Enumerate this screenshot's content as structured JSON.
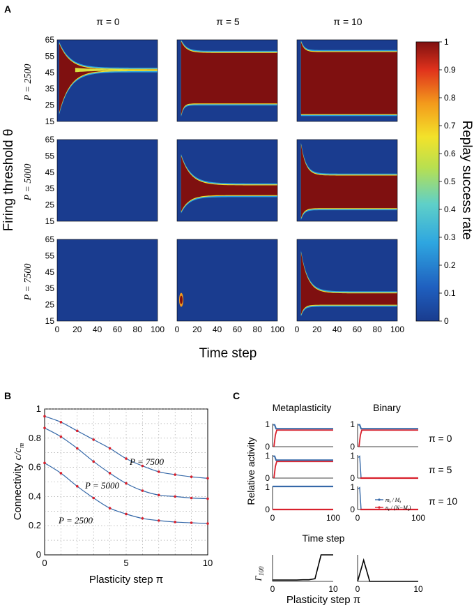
{
  "panels": {
    "a": "A",
    "b": "B",
    "c": "C"
  },
  "panel_a": {
    "col_titles": [
      "π = 0",
      "π = 5",
      "π = 10"
    ],
    "row_titles": [
      "P = 2500",
      "P = 5000",
      "P = 7500"
    ],
    "ylabel": "Firing threshold θ",
    "xlabel": "Time step",
    "yticks": [
      "65",
      "55",
      "45",
      "35",
      "25",
      "15"
    ],
    "xticks": [
      "0",
      "20",
      "40",
      "60",
      "80",
      "100"
    ],
    "colorbar": {
      "label": "Replay success rate",
      "ticks": [
        "1",
        "0.9",
        "0.8",
        "0.7",
        "0.6",
        "0.5",
        "0.4",
        "0.3",
        "0.2",
        "0.1",
        "0"
      ]
    },
    "colors": {
      "high": "#7f1010",
      "low": "#1a3c8f"
    }
  },
  "chart_data": [
    {
      "type": "line",
      "title": "",
      "xlabel": "Plasticity step π",
      "ylabel": "Connectivity c/c_m",
      "ylabel_main": "Connectivity ",
      "ylabel_math": "c/c",
      "ylabel_sub": "m",
      "xlim": [
        0,
        10
      ],
      "ylim": [
        0,
        1
      ],
      "xticks": [
        "0",
        "5",
        "10"
      ],
      "yticks": [
        "0",
        "0.2",
        "0.4",
        "0.6",
        "0.8",
        "1"
      ],
      "x": [
        0,
        1,
        2,
        3,
        4,
        5,
        6,
        7,
        8,
        9,
        10
      ],
      "series": [
        {
          "name": "P = 7500",
          "values": [
            0.95,
            0.91,
            0.85,
            0.79,
            0.73,
            0.66,
            0.61,
            0.57,
            0.55,
            0.535,
            0.525
          ]
        },
        {
          "name": "P = 5000",
          "values": [
            0.87,
            0.81,
            0.73,
            0.64,
            0.56,
            0.49,
            0.44,
            0.41,
            0.4,
            0.39,
            0.385
          ]
        },
        {
          "name": "P = 2500",
          "values": [
            0.63,
            0.56,
            0.47,
            0.39,
            0.32,
            0.28,
            0.25,
            0.235,
            0.225,
            0.22,
            0.215
          ]
        }
      ],
      "colors": {
        "line": "#3568a8",
        "marker": "#d8202c"
      }
    },
    {
      "type": "line",
      "title": "Metaplasticity / Binary",
      "col_titles": [
        "Metaplasticity",
        "Binary"
      ],
      "row_titles": [
        "π = 0",
        "π = 5",
        "π = 10"
      ],
      "ylabel": "Relative activity",
      "xlabel": "Time step",
      "xticks": [
        "0",
        "100"
      ],
      "yticks": [
        "0",
        "1"
      ],
      "legend": [
        "m_t / M_t",
        "n_t / (N−M_t)"
      ],
      "legend_parts": [
        [
          "m",
          "t",
          " / M",
          "t"
        ],
        [
          "n",
          "t",
          " / (N−M",
          "t",
          ")"
        ]
      ],
      "steady_levels": {
        "metaplasticity": {
          "pi0": [
            0.78,
            0.72
          ],
          "pi5": [
            0.78,
            0.72
          ],
          "pi10": [
            1.0,
            0.0
          ]
        },
        "binary": {
          "pi0": [
            0.78,
            0.72
          ],
          "pi5": [
            0.0,
            0.0
          ],
          "pi10": [
            0.0,
            0.0
          ]
        }
      }
    },
    {
      "type": "line",
      "ylabel": "Γ100",
      "ylabel_main": "Γ",
      "ylabel_sub": "100",
      "xlabel": "Plasticity step π",
      "xticks": [
        "0",
        "10"
      ],
      "xlim": [
        0,
        10
      ],
      "ylim": [
        0,
        1
      ],
      "series": [
        {
          "name": "Metaplasticity",
          "x": [
            0,
            1,
            2,
            3,
            4,
            5,
            6,
            7,
            8,
            9,
            10
          ],
          "values": [
            0.05,
            0.05,
            0.05,
            0.05,
            0.05,
            0.06,
            0.06,
            0.1,
            1.0,
            1.0,
            1.0
          ]
        },
        {
          "name": "Binary",
          "x": [
            0,
            1,
            2,
            3,
            4,
            5,
            6,
            7,
            8,
            9,
            10
          ],
          "values": [
            0.0,
            0.8,
            0.0,
            0.0,
            0.0,
            0.0,
            0.0,
            0.0,
            0.0,
            0.0,
            0.0
          ]
        }
      ]
    }
  ]
}
